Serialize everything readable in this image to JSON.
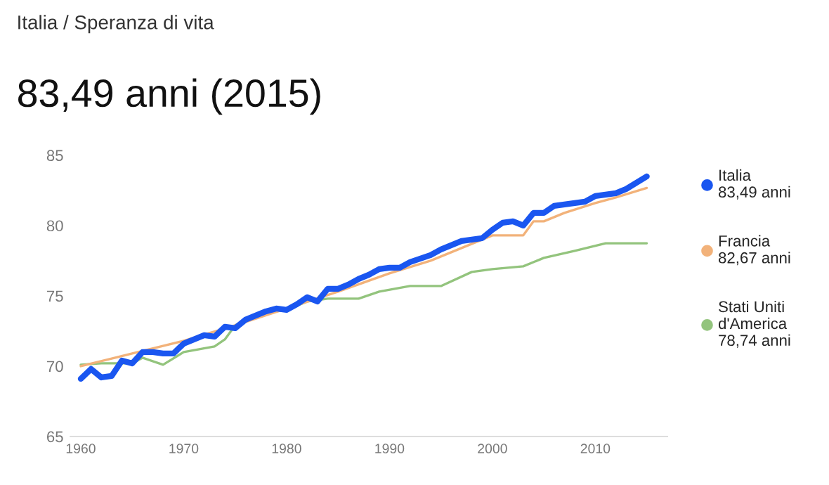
{
  "chart_data": {
    "type": "line",
    "subtitle": "Italia / Speranza di vita",
    "title": "83,49 anni (2015)",
    "xlim": [
      1959,
      2017
    ],
    "xticks": [
      1960,
      1970,
      1980,
      1990,
      2000,
      2010
    ],
    "ylim": [
      65,
      85
    ],
    "yticks": [
      65,
      70,
      75,
      80,
      85
    ],
    "grid": false,
    "legend": "right",
    "marker": "none",
    "line_style": "solid",
    "series": [
      {
        "name": "Italia\n83,49 anni",
        "color": "#1a56f0",
        "x": [
          1960,
          1961,
          1962,
          1963,
          1964,
          1965,
          1966,
          1967,
          1968,
          1969,
          1970,
          1971,
          1972,
          1973,
          1974,
          1975,
          1976,
          1978,
          1979,
          1980,
          1981,
          1982,
          1983,
          1984,
          1985,
          1986,
          1987,
          1988,
          1989,
          1990,
          1991,
          1992,
          1994,
          1995,
          1997,
          1999,
          2000,
          2001,
          2002,
          2003,
          2004,
          2005,
          2006,
          2008,
          2009,
          2010,
          2012,
          2013,
          2015
        ],
        "values": [
          69.1,
          69.8,
          69.2,
          69.3,
          70.4,
          70.2,
          71.0,
          71.0,
          70.9,
          70.9,
          71.6,
          71.9,
          72.2,
          72.1,
          72.8,
          72.7,
          73.3,
          73.9,
          74.1,
          74.0,
          74.4,
          74.9,
          74.6,
          75.5,
          75.5,
          75.8,
          76.2,
          76.5,
          76.9,
          77.0,
          77.0,
          77.4,
          77.9,
          78.3,
          78.9,
          79.1,
          79.7,
          80.2,
          80.3,
          80.0,
          80.9,
          80.9,
          81.4,
          81.6,
          81.7,
          82.1,
          82.3,
          82.6,
          83.49
        ]
      },
      {
        "name": "Francia\n82,67 anni",
        "color": "#f2b27a",
        "x": [
          1960,
          1965,
          1970,
          1975,
          1980,
          1985,
          1990,
          1994,
          2000,
          2003,
          2004,
          2005,
          2006,
          2007,
          2010,
          2012,
          2015
        ],
        "values": [
          70.0,
          70.9,
          71.8,
          72.9,
          74.1,
          75.3,
          76.6,
          77.5,
          79.3,
          79.3,
          80.3,
          80.3,
          80.6,
          80.9,
          81.6,
          82.0,
          82.67
        ]
      },
      {
        "name": "Stati Uniti\nd'America\n78,74 anni",
        "color": "#93c47d",
        "x": [
          1960,
          1962,
          1965,
          1966,
          1968,
          1970,
          1973,
          1974,
          1975,
          1977,
          1980,
          1982,
          1984,
          1987,
          1989,
          1992,
          1995,
          1998,
          2000,
          2003,
          2005,
          2008,
          2011,
          2015
        ],
        "values": [
          70.1,
          70.2,
          70.2,
          70.6,
          70.1,
          71.0,
          71.4,
          71.9,
          72.9,
          73.7,
          74.0,
          74.6,
          74.8,
          74.8,
          75.3,
          75.7,
          75.7,
          76.7,
          76.9,
          77.1,
          77.7,
          78.2,
          78.74,
          78.74
        ]
      }
    ]
  }
}
